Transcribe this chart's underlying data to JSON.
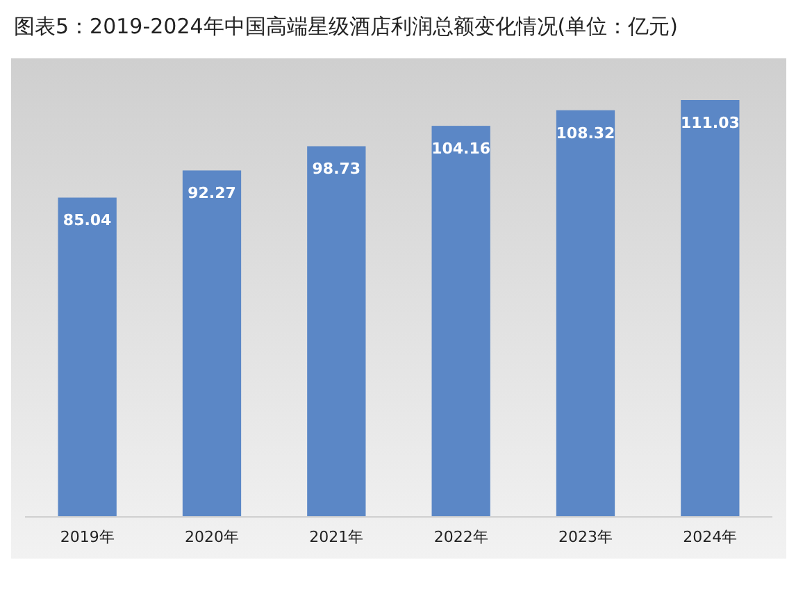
{
  "chart_data": {
    "type": "bar",
    "title": "图表5：2019-2024年中国高端星级酒店利润总额变化情况(单位：亿元)",
    "categories": [
      "2019年",
      "2020年",
      "2021年",
      "2022年",
      "2023年",
      "2024年"
    ],
    "values": [
      85.04,
      92.27,
      98.73,
      104.16,
      108.32,
      111.03
    ],
    "color": "#5b87c6",
    "data_labels": true
  }
}
